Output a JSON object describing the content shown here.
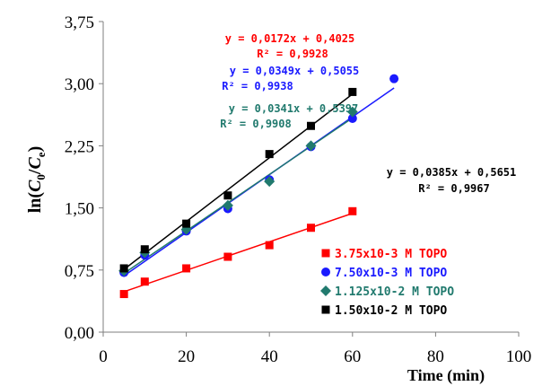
{
  "chart_data": {
    "type": "scatter",
    "title": "",
    "xlabel": "Time (min)",
    "ylabel": "ln(C0/Ce)",
    "ylabel_parts": {
      "prefix": "ln(",
      "c": "C",
      "sub0": "0",
      "slash": "/",
      "c2": "C",
      "sube": "e",
      "suffix": ")"
    },
    "xlim": [
      0,
      100
    ],
    "ylim": [
      0,
      3.75
    ],
    "x_ticks": [
      "0",
      "20",
      "40",
      "60",
      "80",
      "100"
    ],
    "y_ticks": [
      "0,00",
      "0,75",
      "1,50",
      "2,25",
      "3,00",
      "3,75"
    ],
    "grid": false,
    "legend_position": "bottom-right",
    "series": [
      {
        "name": "3.75x10-3 M TOPO",
        "color": "#ff0000",
        "marker": "square",
        "x": [
          5,
          10,
          20,
          30,
          40,
          50,
          60
        ],
        "y": [
          0.46,
          0.61,
          0.77,
          0.91,
          1.05,
          1.26,
          1.46
        ],
        "fit": {
          "slope": 0.0172,
          "intercept": 0.4025
        },
        "equation": "y = 0,0172x + 0,4025",
        "r2": "R² = 0,9928"
      },
      {
        "name": "7.50x10-3 M TOPO",
        "color": "#1a1aff",
        "marker": "circle",
        "x": [
          5,
          10,
          20,
          30,
          40,
          50,
          60,
          70
        ],
        "y": [
          0.72,
          0.93,
          1.22,
          1.49,
          1.84,
          2.24,
          2.58,
          3.06
        ],
        "fit": {
          "slope": 0.0349,
          "intercept": 0.5055
        },
        "equation": "y = 0,0349x + 0,5055",
        "r2": "R² = 0,9938"
      },
      {
        "name": "1.125x10-2 M TOPO",
        "color": "#217a6e",
        "marker": "diamond",
        "x": [
          5,
          10,
          20,
          30,
          40,
          50,
          60
        ],
        "y": [
          0.74,
          0.96,
          1.24,
          1.53,
          1.82,
          2.25,
          2.66
        ],
        "fit": {
          "slope": 0.0341,
          "intercept": 0.5397
        },
        "equation": "y = 0,0341x + 0,5397",
        "r2": "R² = 0,9908"
      },
      {
        "name": "1.50x10-2 M TOPO",
        "color": "#000000",
        "marker": "square",
        "x": [
          5,
          10,
          20,
          30,
          40,
          50,
          60
        ],
        "y": [
          0.77,
          1.0,
          1.31,
          1.65,
          2.15,
          2.49,
          2.9
        ],
        "fit": {
          "slope": 0.0385,
          "intercept": 0.5651
        },
        "equation": "y = 0,0385x + 0,5651",
        "r2": "R² = 0,9967"
      }
    ]
  }
}
